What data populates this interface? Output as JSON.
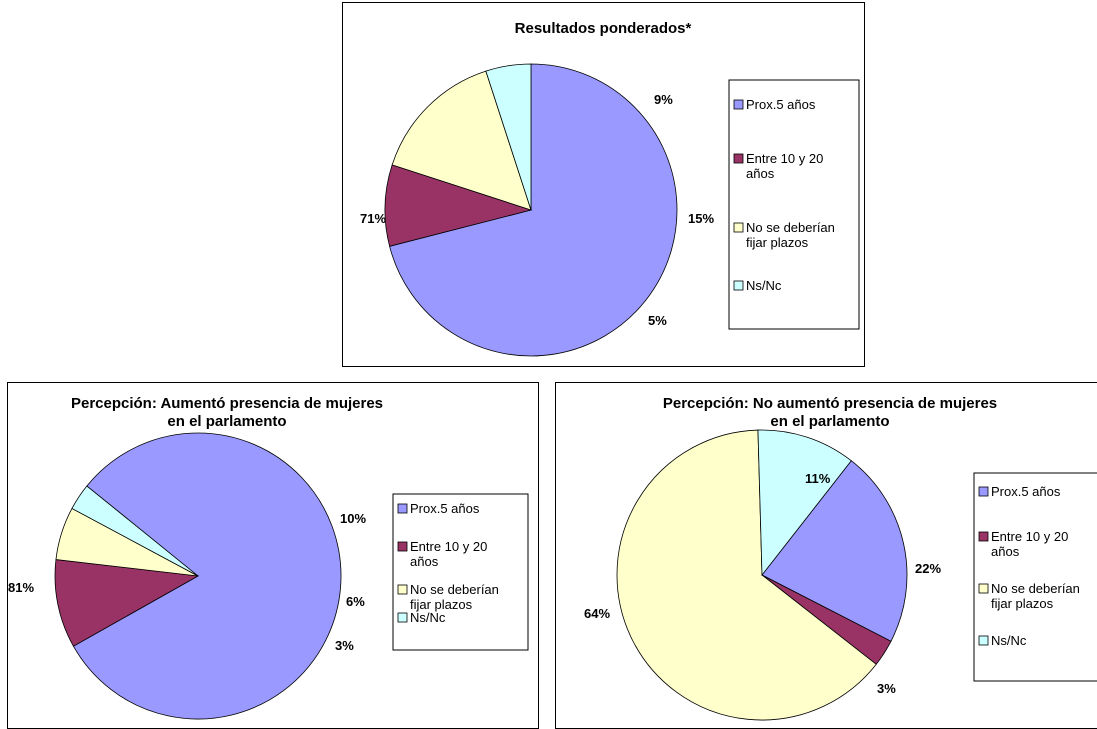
{
  "colors": {
    "prox5": "#9999FF",
    "entre1020": "#993366",
    "noplazos": "#FFFFCC",
    "nsnc": "#CCFFFF"
  },
  "legend_labels": {
    "prox5": "Prox.5 años",
    "entre1020": [
      "Entre 10 y 20",
      "años"
    ],
    "noplazos": [
      "No se deberían",
      "fijar plazos"
    ],
    "nsnc": "Ns/Nc"
  },
  "chart_data": [
    {
      "type": "pie",
      "title": [
        "Resultados ponderados*"
      ],
      "slices": [
        {
          "key": "prox5",
          "value": 71,
          "label": "71%"
        },
        {
          "key": "entre1020",
          "value": 9,
          "label": "9%"
        },
        {
          "key": "noplazos",
          "value": 15,
          "label": "15%"
        },
        {
          "key": "nsnc",
          "value": 5,
          "label": "5%"
        }
      ]
    },
    {
      "type": "pie",
      "title": [
        "Percepción: Aumentó presencia de mujeres",
        "en el parlamento"
      ],
      "slices": [
        {
          "key": "prox5",
          "value": 81,
          "label": "81%"
        },
        {
          "key": "entre1020",
          "value": 10,
          "label": "10%"
        },
        {
          "key": "noplazos",
          "value": 6,
          "label": "6%"
        },
        {
          "key": "nsnc",
          "value": 3,
          "label": "3%"
        }
      ]
    },
    {
      "type": "pie",
      "title": [
        "Percepción: No aumentó presencia de mujeres",
        "en el parlamento"
      ],
      "slices": [
        {
          "key": "prox5",
          "value": 22,
          "label": "22%"
        },
        {
          "key": "entre1020",
          "value": 3,
          "label": "3%"
        },
        {
          "key": "noplazos",
          "value": 64,
          "label": "64%"
        },
        {
          "key": "nsnc",
          "value": 11,
          "label": "11%"
        }
      ]
    }
  ]
}
